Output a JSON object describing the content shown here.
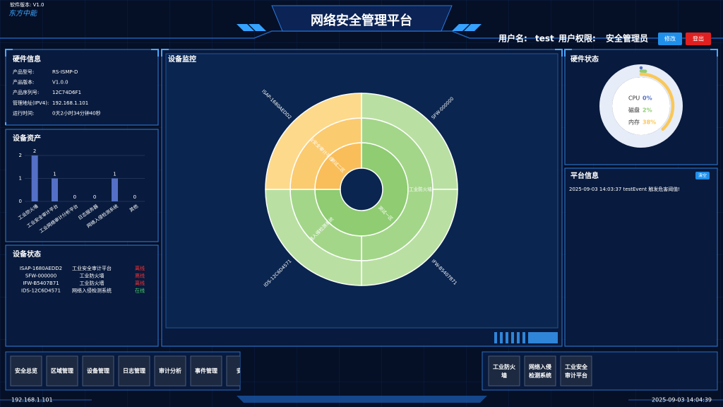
{
  "header": {
    "version": "软件版本: V1.0",
    "logo": "东方中能",
    "title": "网络安全管理平台",
    "user_label": "用户名:",
    "user": "test",
    "role_label": "用户权限:",
    "role": "安全管理员",
    "edit_button": "修改",
    "logout_button": "登出"
  },
  "hardware_info": {
    "title": "硬件信息",
    "rows": [
      [
        "产品型号:",
        "RS-ISMP-D"
      ],
      [
        "产品版本:",
        "V1.0.0"
      ],
      [
        "产品序列号:",
        "12C74D6F1"
      ],
      [
        "管理地址(IPV4):",
        "192.168.1.101"
      ],
      [
        "运行时间:",
        "0天2小时34分钟40秒"
      ]
    ]
  },
  "device_status": {
    "title": "设备状态",
    "rows": [
      [
        "ISAP-1680AEDD2",
        "工业安全审计平台",
        "离线"
      ],
      [
        "SFW-000000",
        "工业防火墙",
        "离线"
      ],
      [
        "IFW-B5407B71",
        "工业防火墙",
        "离线"
      ],
      [
        "IDS-12C6D4571",
        "网络入侵检测系统",
        "在线"
      ]
    ]
  },
  "platform_info": {
    "title": "平台信息",
    "badge": "清空",
    "messages": [
      "2025-09-03 14:03:37 testEvent 触发危害阈值!"
    ]
  },
  "nav": {
    "left": [
      "安全总览",
      "区域管理",
      "设备管理",
      "日志管理",
      "审计分析",
      "事件管理",
      "安全"
    ],
    "right": [
      "工业防火墙",
      "网络入侵检测系统",
      "工业安全审计平台"
    ]
  },
  "footer": {
    "ip": "192.168.1.101",
    "time": "2025-09-03 14:04:39"
  },
  "chart_data": [
    {
      "type": "bar",
      "title": "设备资产",
      "categories": [
        "工业防火墙",
        "工业安全审计平台",
        "工业网络审计分析平台",
        "日志服务器",
        "网络入侵检测系统",
        "其他"
      ],
      "values": [
        2,
        1,
        0,
        0,
        1,
        0
      ],
      "color": "#5470c6",
      "ylim": [
        0,
        2
      ],
      "yticks": [
        0,
        1,
        2
      ],
      "grid": true
    },
    {
      "type": "sunburst",
      "title": "设备监控",
      "rings": [
        [
          {
            "name": "测试一区",
            "value": 3,
            "color": "#8fcc72"
          },
          {
            "name": "测试二区",
            "value": 1,
            "color": "#f9be5a"
          }
        ],
        [
          {
            "name": "工业防火墙",
            "value": 2,
            "color": "#a4d68a"
          },
          {
            "name": "网络入侵检测系统",
            "value": 1,
            "color": "#a4d68a"
          },
          {
            "name": "工业安全审计平台",
            "value": 1,
            "color": "#fbcb70"
          }
        ],
        [
          {
            "name": "SFW-000000",
            "value": 1,
            "color": "#b9e0a2"
          },
          {
            "name": "IFW-B5407B71",
            "value": 1,
            "color": "#b9e0a2"
          },
          {
            "name": "IDS-12C6D4571",
            "value": 1,
            "color": "#b9e0a2"
          },
          {
            "name": "ISAP-1680AEDD2",
            "value": 1,
            "color": "#fdd98b"
          }
        ]
      ]
    },
    {
      "type": "donut",
      "title": "硬件状态",
      "categories": [
        "CPU",
        "磁盘",
        "内存"
      ],
      "values": [
        0,
        2,
        38
      ],
      "value_labels": [
        "0%",
        "2%",
        "38%"
      ],
      "colors": [
        "#5470c6",
        "#91cc75",
        "#fac858"
      ]
    }
  ]
}
